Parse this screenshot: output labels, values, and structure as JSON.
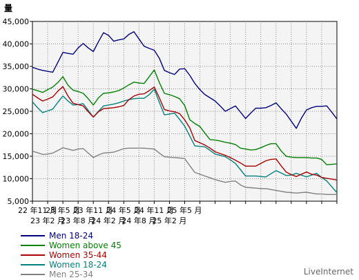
{
  "chart_data": {
    "type": "line",
    "ylabel": "量",
    "ylim": [
      5000,
      45000
    ],
    "yticks": [
      "5,000",
      "10,000",
      "15,000",
      "20,000",
      "25,000",
      "30,000",
      "35,000",
      "40,000",
      "45,000"
    ],
    "xticks_top": [
      "22 年11 月",
      "23 年5 月",
      "23 年11 月",
      "24 年5 月",
      "24 年11 月",
      "25 年5 月"
    ],
    "xticks_bottom": [
      "23 年2 月",
      "23 年8 月",
      "24 年2 月",
      "24 年8 月",
      "25 年2 月"
    ],
    "x": [
      "22-11-1",
      "22-11-2",
      "22-11-3",
      "22-12-1",
      "22-12-2",
      "23-1-1",
      "23-1-2",
      "23-2-1",
      "23-2-2",
      "23-3-1",
      "23-3-2",
      "23-4-1",
      "23-4-2",
      "23-5-1",
      "23-5-2",
      "23-6-1",
      "23-6-2",
      "23-7-1",
      "23-7-2",
      "23-8-1",
      "23-8-2",
      "23-9-1",
      "23-9-2",
      "23-10-1",
      "23-10-2",
      "23-11-1",
      "23-11-2",
      "23-12-1",
      "23-12-2",
      "24-1-1",
      "24-1-2",
      "24-2-1",
      "24-2-2",
      "24-3-1",
      "24-3-2",
      "24-4-1",
      "24-4-2",
      "24-5-1",
      "24-5-2",
      "24-6-1",
      "24-6-2",
      "24-7-1",
      "24-7-2",
      "24-8-1",
      "24-8-2",
      "24-9-1",
      "24-9-2",
      "24-10-1",
      "24-10-2",
      "24-11-1",
      "24-11-2",
      "24-12-1",
      "24-12-2",
      "25-1-1",
      "25-1-2",
      "25-2-1",
      "25-2-2",
      "25-3-1",
      "25-3-2",
      "25-4-1",
      "25-4-2"
    ],
    "series": [
      {
        "name": "Men 18-24",
        "color": "#000080",
        "values": [
          34800,
          34400,
          34100,
          33900,
          33700,
          35900,
          38100,
          37900,
          37700,
          39100,
          40100,
          39100,
          38300,
          40500,
          42500,
          41900,
          40600,
          40900,
          41100,
          42100,
          42700,
          41100,
          39500,
          39000,
          38600,
          36800,
          34100,
          33600,
          33200,
          34400,
          34500,
          33000,
          31200,
          29800,
          28700,
          28000,
          27300,
          26200,
          25000,
          25600,
          26200,
          24800,
          23400,
          24600,
          25700,
          25700,
          25800,
          26300,
          26900,
          25600,
          24400,
          22800,
          21200,
          23500,
          25300,
          25800,
          26100,
          26100,
          26200,
          24800,
          23300
        ]
      },
      {
        "name": "Women above 45",
        "color": "#008000",
        "values": [
          29900,
          29600,
          29200,
          29800,
          30400,
          31400,
          32700,
          30800,
          29700,
          29400,
          29000,
          27800,
          26400,
          28000,
          29000,
          29100,
          29300,
          29600,
          30200,
          30900,
          31500,
          31300,
          31200,
          32700,
          34200,
          31400,
          29000,
          28700,
          28300,
          27800,
          26300,
          23100,
          22300,
          21600,
          20100,
          18700,
          18600,
          18400,
          18100,
          17900,
          17600,
          16800,
          16600,
          16400,
          16500,
          16900,
          17400,
          17800,
          17800,
          16200,
          15000,
          14800,
          14700,
          14700,
          14700,
          14600,
          14600,
          14300,
          13100,
          13200,
          13300
        ]
      },
      {
        "name": "Women 35-44",
        "color": "#aa0000",
        "values": [
          28800,
          28000,
          27300,
          27700,
          28200,
          29500,
          30500,
          28400,
          26800,
          26500,
          26200,
          24900,
          23700,
          24900,
          25600,
          25700,
          25800,
          26000,
          26300,
          27600,
          28400,
          28800,
          28900,
          29600,
          30400,
          28000,
          25400,
          25100,
          24900,
          24500,
          23100,
          21300,
          18500,
          18000,
          17500,
          16800,
          16000,
          15600,
          15200,
          14700,
          14100,
          13500,
          12800,
          12800,
          12800,
          13400,
          14000,
          14300,
          14400,
          12900,
          11500,
          10900,
          10500,
          11000,
          11500,
          11000,
          10800,
          10300,
          10100,
          9900,
          9700
        ]
      },
      {
        "name": "Women 18-24",
        "color": "#008080",
        "values": [
          27100,
          25800,
          24700,
          25100,
          25500,
          27000,
          28400,
          27300,
          26400,
          26500,
          26700,
          25200,
          23700,
          25000,
          26200,
          26400,
          26600,
          26900,
          27300,
          27600,
          27800,
          27900,
          27900,
          28700,
          29900,
          27000,
          24200,
          24400,
          24600,
          23200,
          21700,
          19500,
          17300,
          17200,
          17100,
          16300,
          15500,
          15200,
          14900,
          14200,
          13400,
          12000,
          10600,
          10600,
          10600,
          10500,
          10400,
          11100,
          11800,
          11300,
          10700,
          10800,
          11200,
          10800,
          10400,
          10800,
          11200,
          10300,
          9500,
          8200,
          6900
        ]
      },
      {
        "name": "Men 25-34",
        "color": "#808080",
        "values": [
          16100,
          15800,
          15400,
          15500,
          15700,
          16300,
          16900,
          16600,
          16300,
          16600,
          16700,
          15700,
          14700,
          15300,
          15700,
          15800,
          15900,
          16300,
          16700,
          16800,
          16800,
          16800,
          16800,
          16700,
          16600,
          15700,
          14900,
          14800,
          14700,
          14600,
          14500,
          12900,
          11400,
          11000,
          10600,
          10200,
          9800,
          9500,
          9200,
          9400,
          9500,
          8600,
          8100,
          8000,
          7900,
          7800,
          7800,
          7600,
          7400,
          7200,
          7000,
          6900,
          6800,
          6900,
          7000,
          6800,
          6600,
          6600,
          6500,
          6500,
          6500
        ]
      }
    ],
    "grid": true,
    "legend_position": "bottom-left"
  },
  "credit": "LiveInternet"
}
